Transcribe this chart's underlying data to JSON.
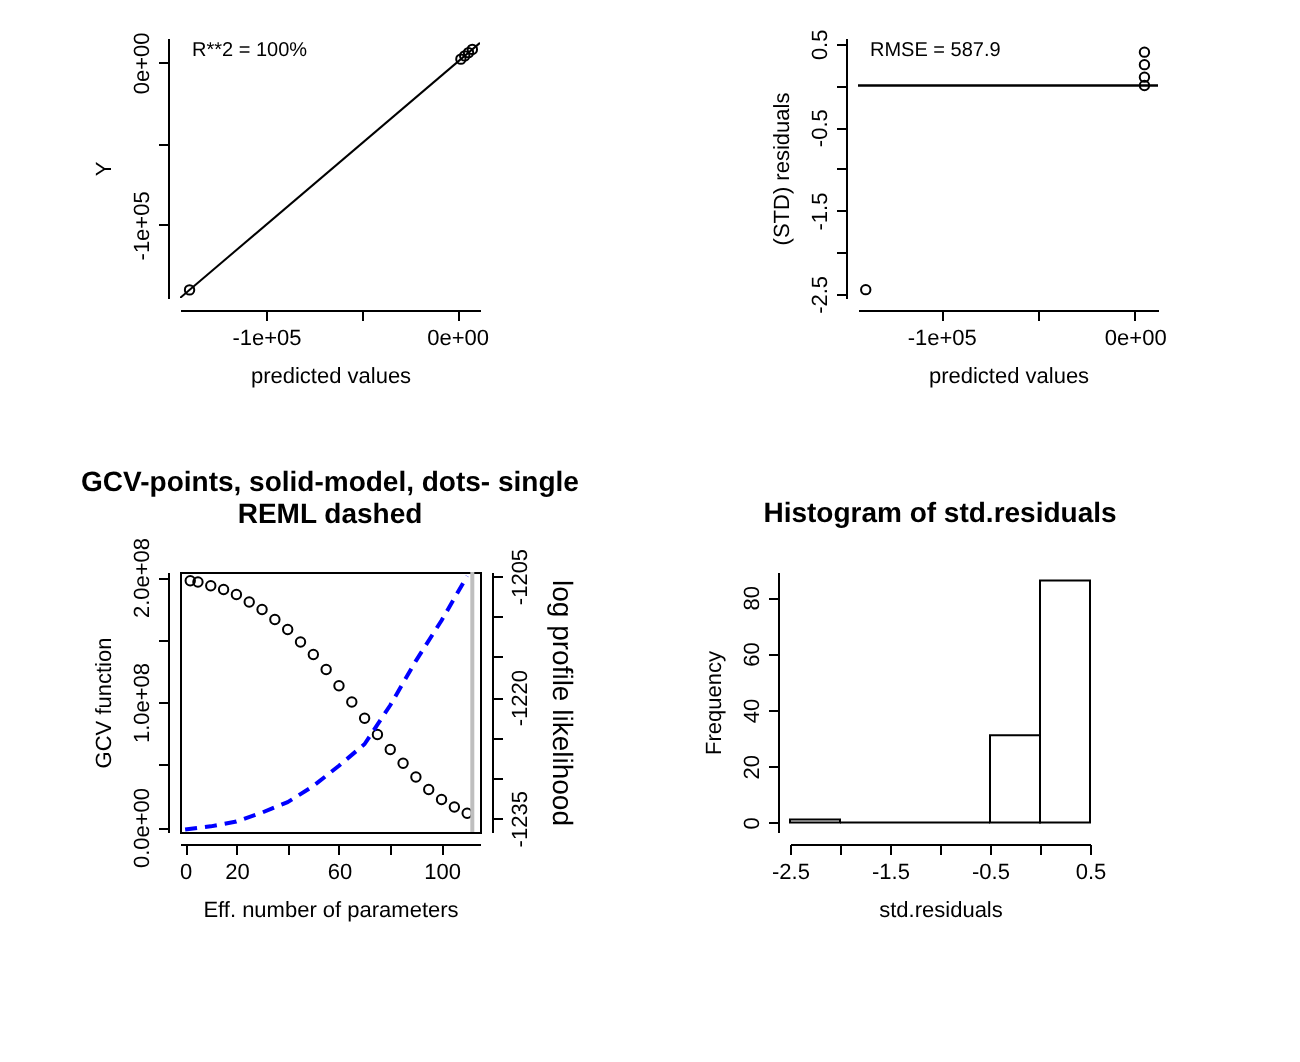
{
  "chart_data": [
    {
      "type": "scatter",
      "xlabel": "predicted values",
      "ylabel": "Y",
      "annotations": [
        "R**2 = 100%"
      ],
      "xlim": [
        -145000,
        12000
      ],
      "ylim": [
        -145000,
        15000
      ],
      "xticks": [
        {
          "value": -100000,
          "label": "-1e+05"
        },
        {
          "value": -50000,
          "label": null
        },
        {
          "value": 0,
          "label": "0e+00"
        }
      ],
      "yticks": [
        {
          "value": -100000,
          "label": "-1e+05"
        },
        {
          "value": -50000,
          "label": null
        },
        {
          "value": 0,
          "label": "0e+00"
        }
      ],
      "marker": "circle",
      "series": [
        {
          "type": "scatter",
          "color": "#000000",
          "x": [
            -140000,
            2000,
            4000,
            6000,
            8000
          ],
          "values": [
            -140000,
            2000,
            4000,
            6000,
            8000
          ]
        },
        {
          "type": "line",
          "color": "#000000",
          "marker": "none",
          "x": [
            -145000,
            12000
          ],
          "values": [
            -145000,
            12000
          ]
        }
      ]
    },
    {
      "type": "scatter",
      "xlabel": "predicted values",
      "ylabel": "(STD) residuals",
      "annotations": [
        "RMSE = 587.9"
      ],
      "xlim": [
        -143000,
        12000
      ],
      "ylim": [
        -2.55,
        0.57
      ],
      "xticks": [
        {
          "value": -100000,
          "label": "-1e+05"
        },
        {
          "value": -50000,
          "label": null
        },
        {
          "value": 0,
          "label": "0e+00"
        }
      ],
      "yticks": [
        {
          "value": -2.5,
          "label": "-2.5"
        },
        {
          "value": -2,
          "label": null
        },
        {
          "value": -1.5,
          "label": "-1.5"
        },
        {
          "value": -1,
          "label": null
        },
        {
          "value": -0.5,
          "label": "-0.5"
        },
        {
          "value": 0,
          "label": null
        },
        {
          "value": 0.5,
          "label": "0.5"
        }
      ],
      "marker": "circle",
      "ref_lines": [
        {
          "axis": "y",
          "value": 0,
          "color": "#000000"
        }
      ],
      "series": [
        {
          "type": "scatter",
          "color": "#000000",
          "x": [
            -139000,
            5000,
            5000,
            5000,
            5000
          ],
          "values": [
            -2.45,
            0.4,
            0.25,
            0.1,
            0
          ]
        }
      ]
    },
    {
      "type": "scatter",
      "title": "GCV-points, solid-model, dots- single\nREML dashed",
      "xlabel": "Eff. number of parameters",
      "ylabel": "GCV function",
      "y2label": "log profile likelihood",
      "xlim": [
        -2,
        115
      ],
      "ylim": [
        -4000000,
        204000000
      ],
      "y2lim": [
        -1236.7,
        -1204.5
      ],
      "xticks": [
        0,
        20,
        {
          "value": 40,
          "label": null
        },
        60,
        {
          "value": 80,
          "label": null
        },
        100
      ],
      "yticks": [
        {
          "value": 0,
          "label": "0.0e+00"
        },
        {
          "value": 50000000,
          "label": null
        },
        {
          "value": 100000000,
          "label": "1.0e+08"
        },
        {
          "value": 150000000,
          "label": null
        },
        {
          "value": 200000000,
          "label": "2.0e+08"
        }
      ],
      "y2ticks": [
        -1205,
        {
          "value": -1210,
          "label": null
        },
        {
          "value": -1215,
          "label": null
        },
        -1220,
        {
          "value": -1225,
          "label": null
        },
        {
          "value": -1230,
          "label": null
        },
        -1235
      ],
      "marker": "circle",
      "ref_lines": [
        {
          "axis": "x",
          "value": 112,
          "color": "#bebebe"
        }
      ],
      "series": [
        {
          "type": "scatter",
          "color": "#000000",
          "x": [
            2,
            5,
            10,
            15,
            20,
            25,
            30,
            35,
            40,
            45,
            50,
            55,
            60,
            65,
            70,
            75,
            80,
            85,
            90,
            95,
            100,
            105,
            110
          ],
          "values": [
            197000000,
            196000000,
            193000000,
            190000000,
            186000000,
            180000000,
            174000000,
            166000000,
            158000000,
            148000000,
            138000000,
            126000000,
            113000000,
            100000000,
            87000000,
            74000000,
            62000000,
            51000000,
            40000000,
            30000000,
            22000000,
            16000000,
            11000000
          ]
        },
        {
          "type": "line",
          "axis": "y2",
          "color": "#0000ff",
          "line_style": "dashed",
          "marker": "none",
          "x": [
            0,
            10,
            20,
            30,
            40,
            50,
            60,
            70,
            80,
            90,
            100,
            110
          ],
          "values": [
            -1236.4,
            -1236,
            -1235.4,
            -1234.3,
            -1233,
            -1231,
            -1228.5,
            -1225.8,
            -1221,
            -1215.5,
            -1210.5,
            -1205
          ]
        }
      ]
    },
    {
      "type": "histogram",
      "title": "Histogram of std.residuals",
      "xlabel": "std.residuals",
      "ylabel": "Frequency",
      "bins": [
        -2.5,
        -2,
        -1.5,
        -1,
        -0.5,
        0,
        0.5
      ],
      "values": [
        1,
        0,
        0,
        0,
        31,
        86
      ],
      "ylim": [
        -3.4,
        89
      ],
      "yticks": [
        0,
        20,
        40,
        60,
        80
      ],
      "xlim": [
        -2.5,
        0.5
      ],
      "xticks": [
        -2.5,
        {
          "value": -2,
          "label": null
        },
        -1.5,
        {
          "value": -1,
          "label": null
        },
        -0.5,
        {
          "value": 0,
          "label": null
        },
        0.5
      ]
    }
  ]
}
